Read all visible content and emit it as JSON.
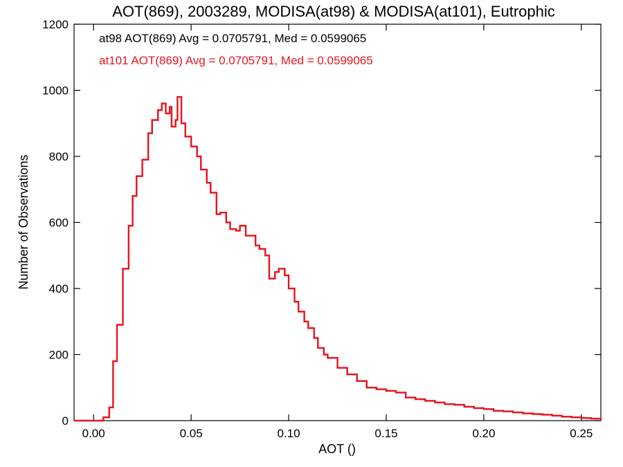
{
  "chart_data": {
    "type": "line",
    "title": "AOT(869), 2003289, MODISA(at98) & MODISA(at101), Eutrophic",
    "xlabel": "AOT ()",
    "ylabel": "Number of Observations",
    "xlim": [
      -0.01,
      0.26
    ],
    "ylim": [
      0,
      1200
    ],
    "x_ticks": [
      0.0,
      0.05,
      0.1,
      0.15,
      0.2,
      0.25
    ],
    "x_tick_labels": [
      "0.00",
      "0.05",
      "0.10",
      "0.15",
      "0.20",
      "0.25"
    ],
    "y_ticks": [
      0,
      200,
      400,
      600,
      800,
      1000,
      1200
    ],
    "y_tick_labels": [
      "0",
      "200",
      "400",
      "600",
      "800",
      "1000",
      "1200"
    ],
    "series": [
      {
        "color": "#000000",
        "x": [
          -0.01,
          0.0,
          0.005,
          0.008,
          0.01,
          0.012,
          0.015,
          0.018,
          0.02,
          0.022,
          0.025,
          0.028,
          0.03,
          0.033,
          0.035,
          0.037,
          0.039,
          0.04,
          0.042,
          0.043,
          0.045,
          0.047,
          0.05,
          0.053,
          0.055,
          0.058,
          0.06,
          0.063,
          0.065,
          0.068,
          0.07,
          0.073,
          0.075,
          0.078,
          0.08,
          0.083,
          0.085,
          0.088,
          0.09,
          0.093,
          0.095,
          0.098,
          0.1,
          0.103,
          0.105,
          0.108,
          0.11,
          0.113,
          0.115,
          0.118,
          0.12,
          0.125,
          0.13,
          0.135,
          0.14,
          0.145,
          0.15,
          0.155,
          0.16,
          0.165,
          0.17,
          0.175,
          0.18,
          0.185,
          0.19,
          0.195,
          0.2,
          0.205,
          0.21,
          0.215,
          0.22,
          0.225,
          0.23,
          0.235,
          0.24,
          0.245,
          0.25,
          0.255,
          0.26
        ],
        "values": [
          0,
          0,
          10,
          40,
          180,
          290,
          460,
          590,
          680,
          740,
          790,
          870,
          910,
          940,
          960,
          930,
          950,
          890,
          910,
          980,
          900,
          860,
          830,
          800,
          760,
          720,
          690,
          625,
          630,
          600,
          580,
          575,
          590,
          560,
          560,
          530,
          520,
          500,
          430,
          450,
          460,
          440,
          400,
          360,
          330,
          300,
          280,
          250,
          220,
          200,
          190,
          160,
          140,
          120,
          100,
          95,
          90,
          85,
          70,
          65,
          60,
          55,
          50,
          48,
          42,
          38,
          35,
          30,
          28,
          25,
          22,
          20,
          18,
          15,
          12,
          10,
          8,
          6,
          4
        ]
      },
      {
        "color": "#e8141e",
        "x": [
          -0.01,
          0.0,
          0.005,
          0.008,
          0.01,
          0.012,
          0.015,
          0.018,
          0.02,
          0.022,
          0.025,
          0.028,
          0.03,
          0.033,
          0.035,
          0.037,
          0.039,
          0.04,
          0.042,
          0.043,
          0.045,
          0.047,
          0.05,
          0.053,
          0.055,
          0.058,
          0.06,
          0.063,
          0.065,
          0.068,
          0.07,
          0.073,
          0.075,
          0.078,
          0.08,
          0.083,
          0.085,
          0.088,
          0.09,
          0.093,
          0.095,
          0.098,
          0.1,
          0.103,
          0.105,
          0.108,
          0.11,
          0.113,
          0.115,
          0.118,
          0.12,
          0.125,
          0.13,
          0.135,
          0.14,
          0.145,
          0.15,
          0.155,
          0.16,
          0.165,
          0.17,
          0.175,
          0.18,
          0.185,
          0.19,
          0.195,
          0.2,
          0.205,
          0.21,
          0.215,
          0.22,
          0.225,
          0.23,
          0.235,
          0.24,
          0.245,
          0.25,
          0.255,
          0.26
        ],
        "values": [
          0,
          0,
          10,
          40,
          180,
          290,
          460,
          590,
          680,
          740,
          790,
          870,
          910,
          940,
          960,
          930,
          950,
          890,
          910,
          980,
          900,
          860,
          830,
          800,
          760,
          720,
          690,
          625,
          630,
          600,
          580,
          575,
          590,
          560,
          560,
          530,
          520,
          500,
          430,
          450,
          460,
          440,
          400,
          360,
          330,
          300,
          280,
          250,
          220,
          200,
          190,
          160,
          140,
          120,
          100,
          95,
          90,
          85,
          70,
          65,
          60,
          55,
          50,
          48,
          42,
          38,
          35,
          30,
          28,
          25,
          22,
          20,
          18,
          15,
          12,
          10,
          8,
          6,
          4
        ]
      }
    ],
    "annotations": [
      {
        "text": "at98 AOT(869) Avg = 0.0705791, Med = 0.0599065",
        "color": "#000000"
      },
      {
        "text": "at101 AOT(869) Avg = 0.0705791, Med = 0.0599065",
        "color": "#e8141e"
      }
    ],
    "grid": false,
    "legend": "none"
  }
}
